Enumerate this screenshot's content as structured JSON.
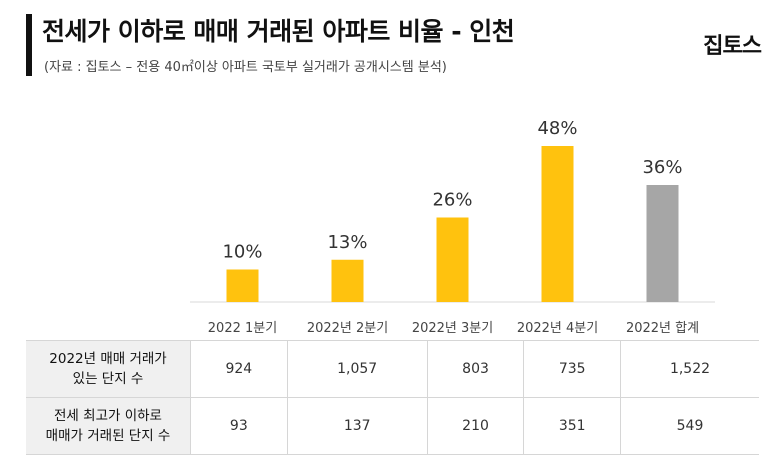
{
  "header": {
    "title": "전세가 이하로 매매 거래된 아파트 비율 - 인천",
    "subtitle": "(자료 : 집토스 – 전용 40㎡이상 아파트 국토부 실거래가 공개시스템 분석)",
    "logo": "집토스"
  },
  "chart_data": {
    "type": "bar",
    "categories": [
      "2022 1분기",
      "2022년 2분기",
      "2022년 3분기",
      "2022년 4분기",
      "2022년 합계"
    ],
    "values": [
      10,
      13,
      26,
      48,
      36
    ],
    "data_labels": [
      "10%",
      "13%",
      "26%",
      "48%",
      "36%"
    ],
    "colors": [
      "#FFC20E",
      "#FFC20E",
      "#FFC20E",
      "#FFC20E",
      "#A6A6A6"
    ],
    "grid": false,
    "title": "",
    "xlabel": "",
    "ylabel": ""
  },
  "table": {
    "rows": [
      {
        "label_line1": "2022년 매매 거래가",
        "label_line2": "있는 단지 수",
        "values": [
          "924",
          "1,057",
          "803",
          "735",
          "1,522"
        ]
      },
      {
        "label_line1": "전세 최고가 이하로",
        "label_line2": "매매가 거래된 단지 수",
        "values": [
          "93",
          "137",
          "210",
          "351",
          "549"
        ]
      }
    ]
  }
}
